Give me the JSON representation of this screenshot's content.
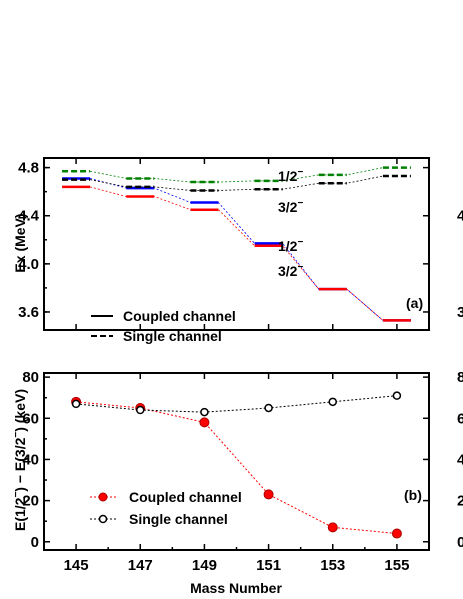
{
  "chart_data": [
    {
      "panel": "(a)",
      "type": "level-scheme",
      "ylabel": "Ex (MeV)",
      "xlim": [
        144,
        156
      ],
      "ylim": [
        3.45,
        4.88
      ],
      "yticks": [
        "3.6",
        "4.0",
        "4.4",
        "4.8"
      ],
      "x": [
        145,
        147,
        149,
        151,
        153,
        155
      ],
      "series": [
        {
          "channel": "coupled",
          "state": "1/2-",
          "color": "#0000ff",
          "style": "solid",
          "values": [
            4.71,
            4.63,
            4.51,
            4.17,
            3.79,
            3.53
          ]
        },
        {
          "channel": "coupled",
          "state": "3/2-",
          "color": "#ff0000",
          "style": "solid",
          "values": [
            4.64,
            4.56,
            4.45,
            4.15,
            3.79,
            3.53
          ]
        },
        {
          "channel": "single",
          "state": "1/2-",
          "color": "#008000",
          "style": "dashed",
          "values": [
            4.77,
            4.71,
            4.68,
            4.69,
            4.74,
            4.8
          ]
        },
        {
          "channel": "single",
          "state": "3/2-",
          "color": "#000000",
          "style": "dashed",
          "values": [
            4.7,
            4.64,
            4.61,
            4.62,
            4.67,
            4.73
          ]
        }
      ],
      "annotations": {
        "upper_half": "1/2",
        "upper_threehalf": "3/2",
        "lower_half": "1/2",
        "lower_threehalf": "3/2",
        "sup": "−"
      },
      "legend": {
        "coupled": "Coupled channel",
        "single": "Single channel",
        "placement": "bottom-left"
      },
      "panel_label": "(a)"
    },
    {
      "panel": "(b)",
      "type": "line",
      "ylabel_parts": [
        "E(1/2",
        "−",
        ") − E(3/2",
        "−",
        ")  (keV)"
      ],
      "xlabel": "Mass Number",
      "xlim": [
        144,
        156
      ],
      "ylim": [
        -4,
        82
      ],
      "yticks": [
        "0",
        "20",
        "40",
        "60",
        "80"
      ],
      "x": [
        145,
        147,
        149,
        151,
        153,
        155
      ],
      "xticks": [
        "145",
        "147",
        "149",
        "151",
        "153",
        "155"
      ],
      "series": [
        {
          "name": "Coupled channel",
          "marker": "filled-red-circle",
          "color": "#ff0000",
          "values": [
            68,
            65,
            58,
            23,
            7,
            4
          ]
        },
        {
          "name": "Single channel",
          "marker": "open-black-circle",
          "color": "#000000",
          "values": [
            67,
            64,
            63,
            65,
            68,
            71
          ]
        }
      ],
      "legend": {
        "placement": "bottom-left"
      },
      "panel_label": "(b)"
    }
  ],
  "right_edge_ticks": [
    "4",
    "3",
    "8",
    "6",
    "4",
    "2",
    "0"
  ]
}
